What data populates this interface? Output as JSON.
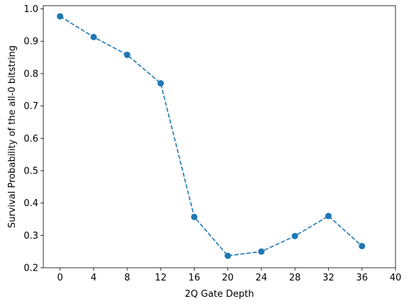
{
  "chart_data": {
    "type": "line",
    "title": "",
    "xlabel": "2Q Gate Depth",
    "ylabel": "Survival Probability of the all-0 bitstring",
    "xlim": [
      -2,
      40
    ],
    "ylim": [
      0.2,
      1.01
    ],
    "x_ticks": [
      0,
      4,
      8,
      12,
      16,
      20,
      24,
      28,
      32,
      36,
      40
    ],
    "y_ticks": [
      0.2,
      0.3,
      0.4,
      0.5,
      0.6,
      0.7,
      0.8,
      0.9,
      1.0
    ],
    "grid": false,
    "legend": "none",
    "series": [
      {
        "x": [
          0,
          4,
          8,
          12,
          16,
          20,
          24,
          28,
          32,
          36
        ],
        "y": [
          0.977,
          0.913,
          0.858,
          0.77,
          0.357,
          0.237,
          0.25,
          0.298,
          0.36,
          0.267
        ],
        "color": "#1f77b4",
        "line_style": "dashed",
        "marker": "circle"
      }
    ]
  }
}
